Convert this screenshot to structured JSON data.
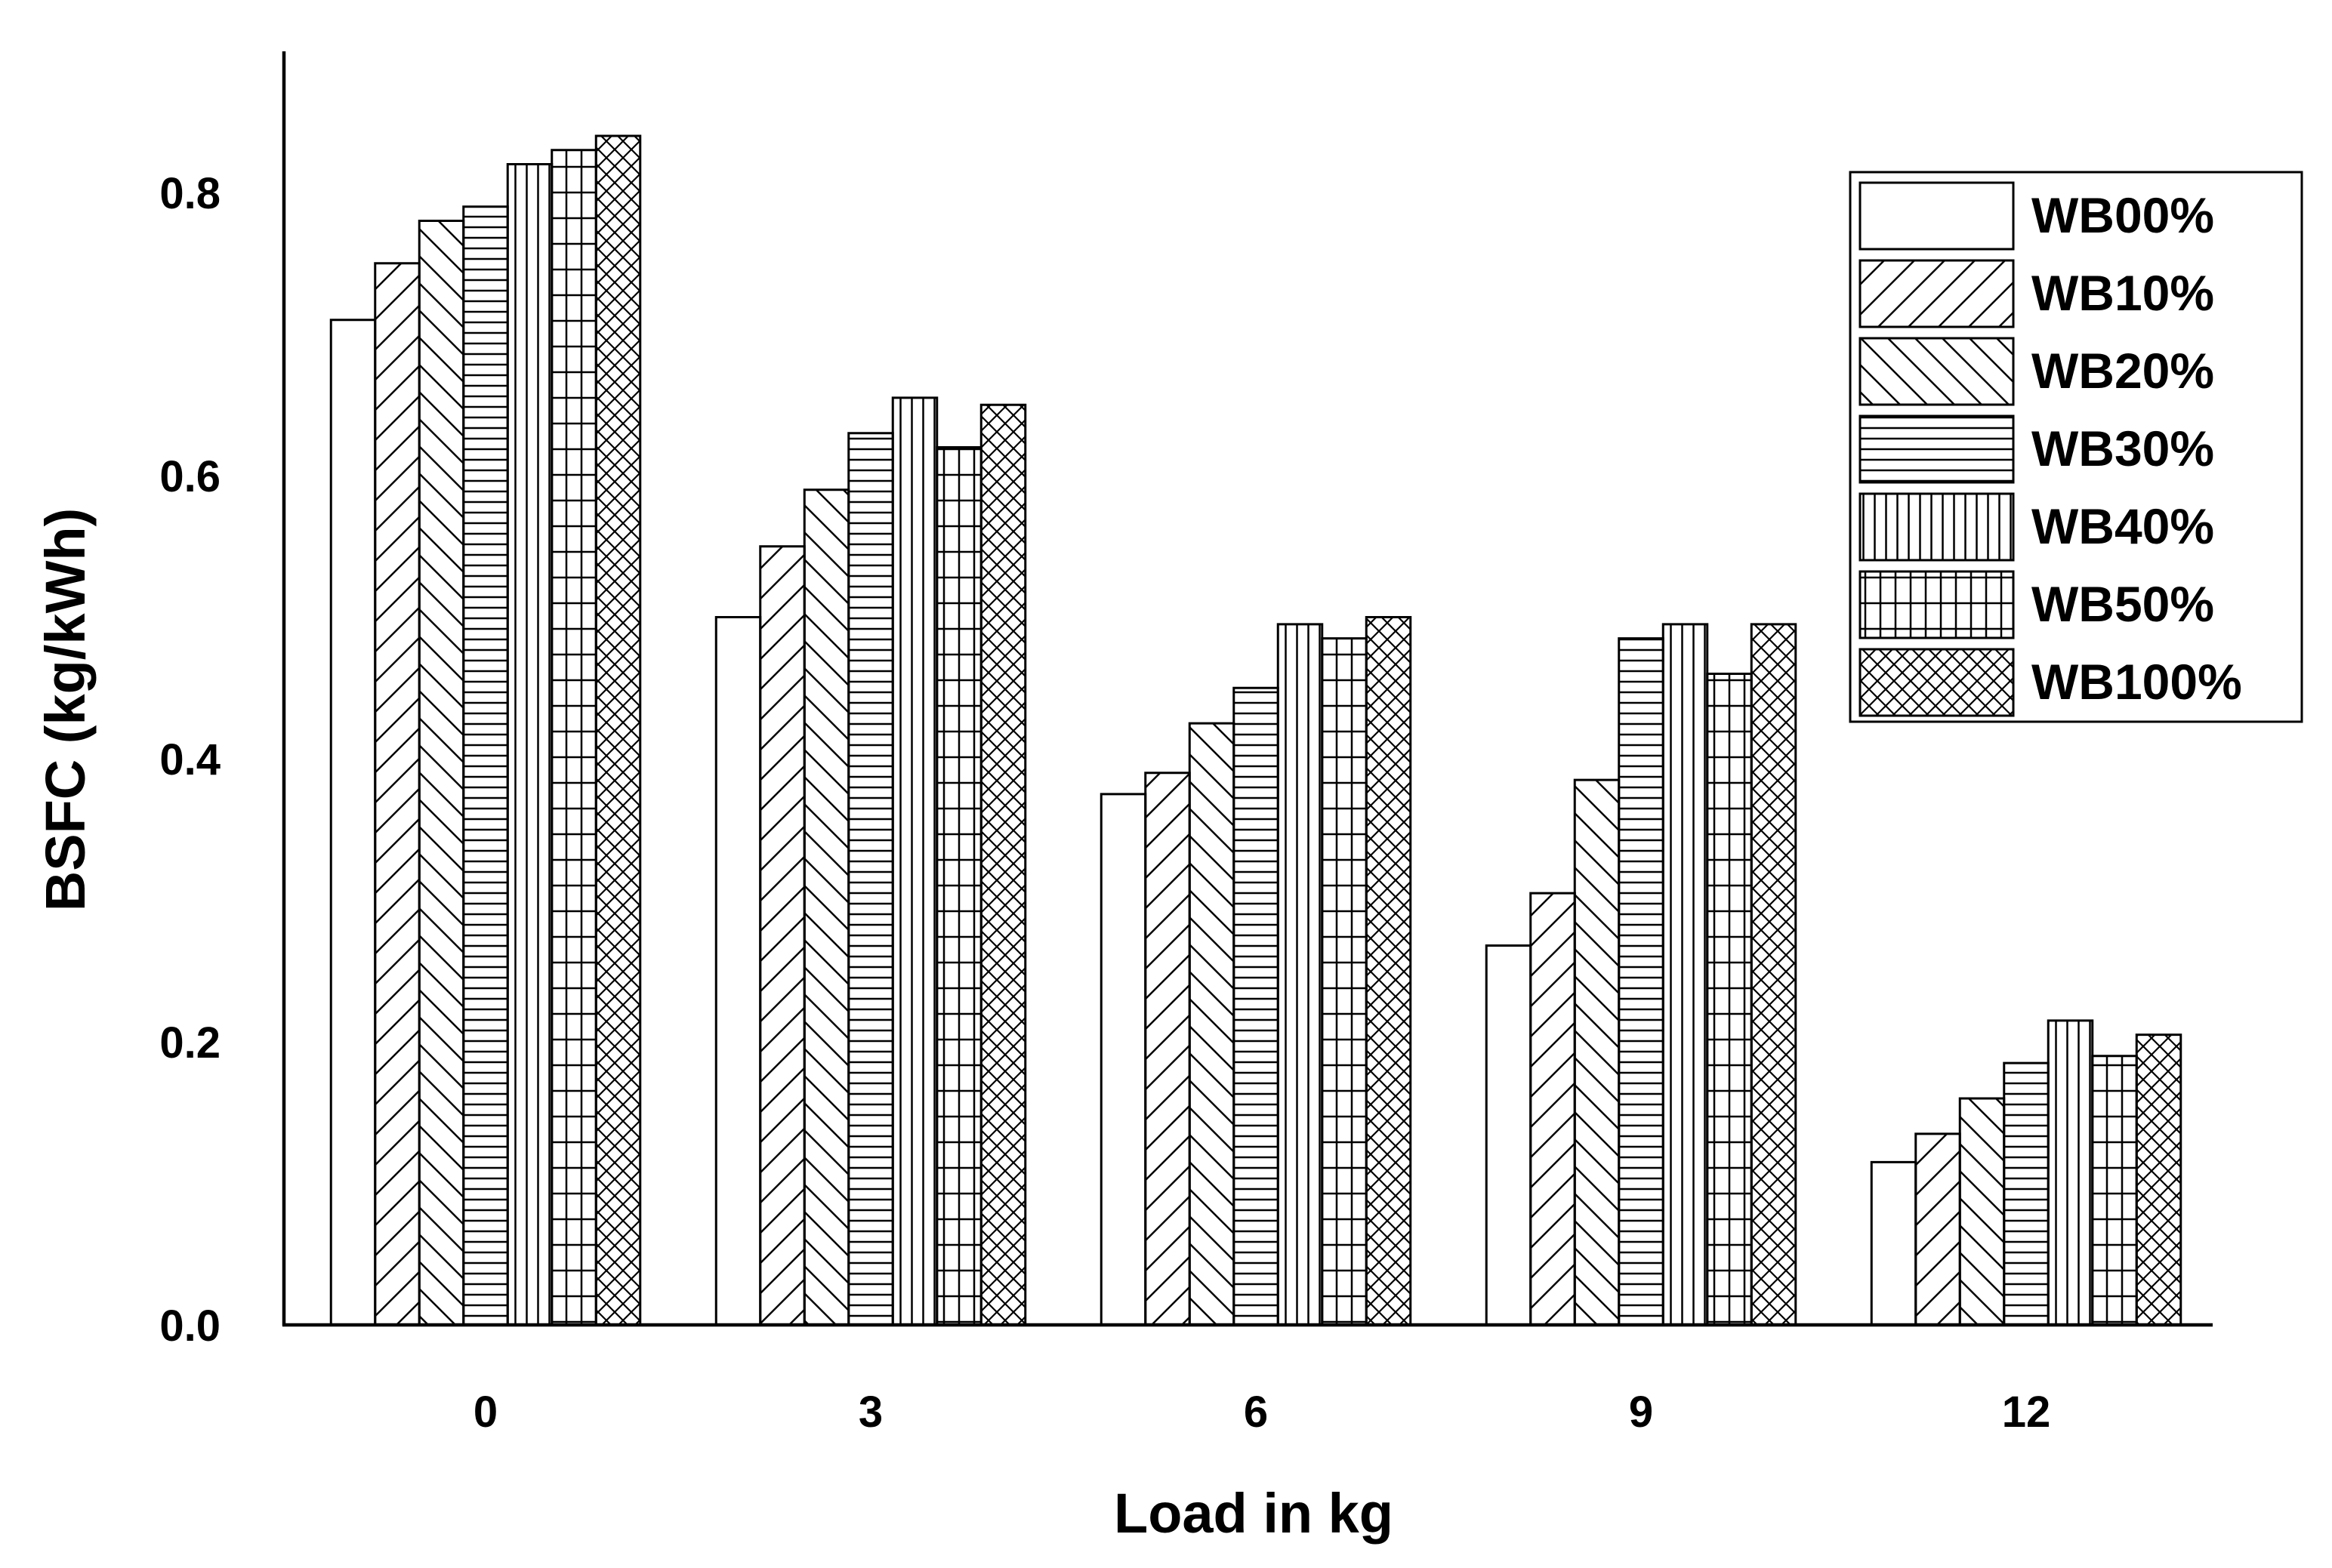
{
  "chart_data": {
    "type": "bar",
    "title": "",
    "xlabel": "Load in kg",
    "ylabel": "BSFC (kg/kWh)",
    "ylim": [
      0,
      0.9
    ],
    "yticks": [
      0.0,
      0.2,
      0.4,
      0.6,
      0.8
    ],
    "ytick_labels": [
      "0.0",
      "0.2",
      "0.4",
      "0.6",
      "0.8"
    ],
    "categories": [
      "0",
      "3",
      "6",
      "9",
      "12"
    ],
    "legend_position": "top-right",
    "grid": false,
    "series": [
      {
        "name": "WB00%",
        "pattern": "none",
        "values": [
          0.71,
          0.5,
          0.375,
          0.268,
          0.115
        ]
      },
      {
        "name": "WB10%",
        "pattern": "diag-up",
        "values": [
          0.75,
          0.55,
          0.39,
          0.305,
          0.135
        ]
      },
      {
        "name": "WB20%",
        "pattern": "diag-down",
        "values": [
          0.78,
          0.59,
          0.425,
          0.385,
          0.16
        ]
      },
      {
        "name": "WB30%",
        "pattern": "horizontal",
        "values": [
          0.79,
          0.63,
          0.45,
          0.485,
          0.185
        ]
      },
      {
        "name": "WB40%",
        "pattern": "vertical",
        "values": [
          0.82,
          0.655,
          0.495,
          0.495,
          0.215
        ]
      },
      {
        "name": "WB50%",
        "pattern": "grid",
        "values": [
          0.83,
          0.62,
          0.485,
          0.46,
          0.19
        ]
      },
      {
        "name": "WB100%",
        "pattern": "crosshatch",
        "values": [
          0.84,
          0.65,
          0.5,
          0.495,
          0.205
        ]
      }
    ]
  }
}
